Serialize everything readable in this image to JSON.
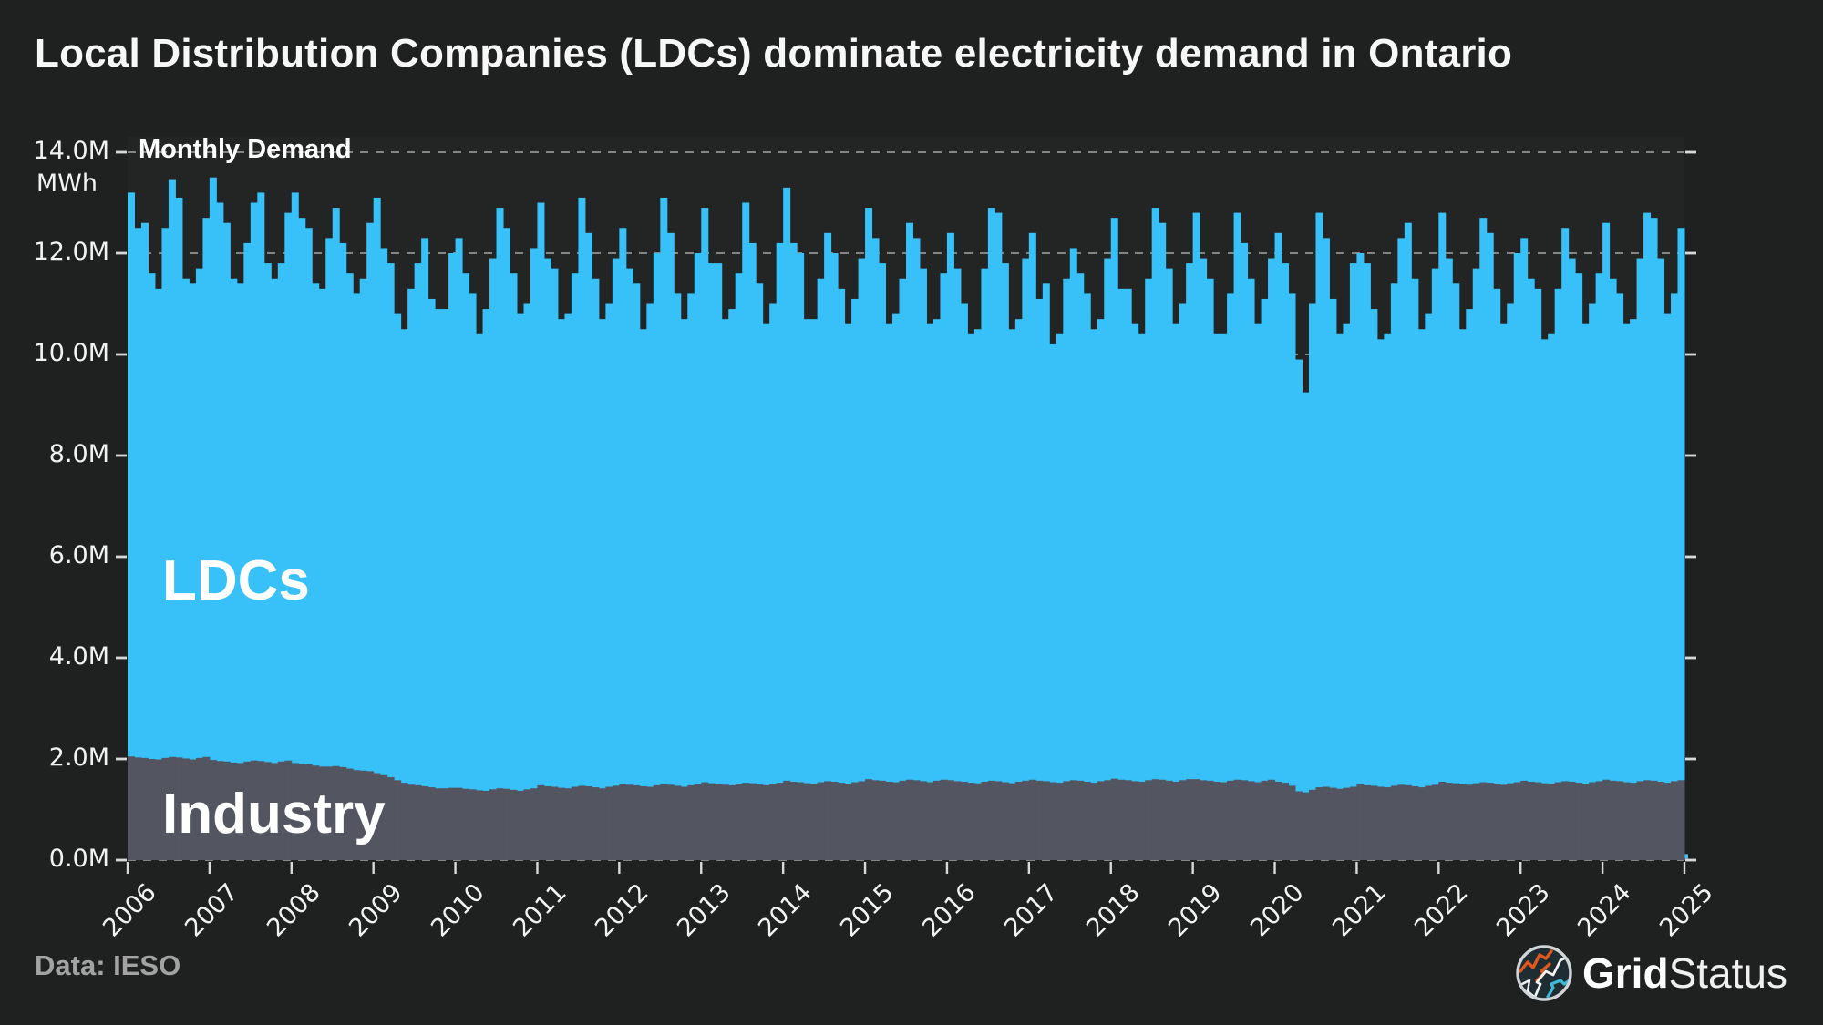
{
  "title": "Local Distribution Companies (LDCs) dominate electricity demand in Ontario",
  "footer": {
    "source": "Data: IESO",
    "brand_bold": "Grid",
    "brand_light": "Status"
  },
  "colors": {
    "background": "#1f2120",
    "plot_background": "#232525",
    "ldcs": "#38c0f8",
    "industry": "#535561",
    "gridline": "#9e9e9e",
    "tick": "#d9d9d9",
    "text": "#f2f2f2"
  },
  "chart_data": {
    "type": "bar",
    "stacked": true,
    "title": "Monthly Demand",
    "ylabel": "MWh",
    "unit": "million MWh per month",
    "x_start": "2006-01",
    "x_end": "2025-01",
    "x_end_note": "final bar is a small partial month",
    "x_tick_rotation": 45,
    "grid": "dashed-horizontal",
    "ylim": [
      0,
      14
    ],
    "yticks": [
      "0.0M",
      "2.0M",
      "4.0M",
      "6.0M",
      "8.0M",
      "10.0M",
      "12.0M",
      "14.0M"
    ],
    "xticks": [
      "2006",
      "2007",
      "2008",
      "2009",
      "2010",
      "2011",
      "2012",
      "2013",
      "2014",
      "2015",
      "2016",
      "2017",
      "2018",
      "2019",
      "2020",
      "2021",
      "2022",
      "2023",
      "2024",
      "2025"
    ],
    "series": [
      {
        "name": "Industry",
        "color": "#535561",
        "values": [
          2.05,
          2.03,
          2.02,
          2.0,
          1.99,
          2.02,
          2.04,
          2.03,
          2.01,
          1.99,
          2.02,
          2.04,
          1.98,
          1.96,
          1.95,
          1.93,
          1.92,
          1.95,
          1.97,
          1.96,
          1.94,
          1.92,
          1.95,
          1.97,
          1.92,
          1.91,
          1.9,
          1.87,
          1.85,
          1.85,
          1.86,
          1.84,
          1.81,
          1.78,
          1.77,
          1.76,
          1.72,
          1.68,
          1.64,
          1.58,
          1.53,
          1.49,
          1.48,
          1.46,
          1.44,
          1.42,
          1.42,
          1.43,
          1.43,
          1.41,
          1.4,
          1.38,
          1.37,
          1.4,
          1.42,
          1.41,
          1.39,
          1.37,
          1.4,
          1.42,
          1.48,
          1.46,
          1.45,
          1.43,
          1.42,
          1.45,
          1.47,
          1.46,
          1.44,
          1.42,
          1.45,
          1.47,
          1.51,
          1.49,
          1.48,
          1.46,
          1.45,
          1.48,
          1.5,
          1.49,
          1.47,
          1.45,
          1.48,
          1.5,
          1.54,
          1.52,
          1.51,
          1.49,
          1.48,
          1.51,
          1.53,
          1.52,
          1.5,
          1.48,
          1.51,
          1.53,
          1.57,
          1.55,
          1.54,
          1.52,
          1.51,
          1.54,
          1.56,
          1.55,
          1.53,
          1.51,
          1.54,
          1.56,
          1.6,
          1.58,
          1.57,
          1.55,
          1.54,
          1.57,
          1.59,
          1.58,
          1.56,
          1.54,
          1.57,
          1.59,
          1.58,
          1.56,
          1.55,
          1.53,
          1.52,
          1.55,
          1.57,
          1.56,
          1.54,
          1.52,
          1.55,
          1.57,
          1.59,
          1.57,
          1.56,
          1.54,
          1.53,
          1.56,
          1.58,
          1.57,
          1.55,
          1.53,
          1.56,
          1.58,
          1.61,
          1.59,
          1.58,
          1.56,
          1.55,
          1.58,
          1.6,
          1.59,
          1.57,
          1.55,
          1.58,
          1.6,
          1.6,
          1.58,
          1.57,
          1.55,
          1.54,
          1.57,
          1.59,
          1.58,
          1.56,
          1.54,
          1.57,
          1.59,
          1.55,
          1.53,
          1.47,
          1.36,
          1.34,
          1.39,
          1.44,
          1.45,
          1.43,
          1.41,
          1.43,
          1.45,
          1.5,
          1.48,
          1.47,
          1.45,
          1.44,
          1.47,
          1.49,
          1.48,
          1.46,
          1.44,
          1.47,
          1.49,
          1.55,
          1.53,
          1.52,
          1.5,
          1.49,
          1.52,
          1.54,
          1.53,
          1.51,
          1.49,
          1.52,
          1.54,
          1.57,
          1.55,
          1.54,
          1.52,
          1.51,
          1.54,
          1.56,
          1.55,
          1.53,
          1.51,
          1.54,
          1.56,
          1.59,
          1.57,
          1.56,
          1.54,
          1.53,
          1.56,
          1.58,
          1.57,
          1.55,
          1.53,
          1.56,
          1.58,
          0.03
        ]
      },
      {
        "name": "LDCs",
        "color": "#38c0f8",
        "values": [
          11.15,
          10.47,
          10.58,
          9.6,
          9.31,
          10.48,
          11.41,
          11.07,
          9.49,
          9.41,
          9.68,
          10.66,
          11.52,
          11.04,
          10.65,
          9.57,
          9.48,
          10.25,
          11.03,
          11.24,
          9.86,
          9.58,
          9.85,
          10.83,
          11.28,
          10.79,
          10.6,
          9.53,
          9.45,
          10.45,
          11.04,
          10.36,
          9.79,
          9.42,
          9.73,
          10.84,
          11.38,
          10.42,
          10.16,
          9.22,
          8.97,
          9.81,
          10.32,
          10.84,
          9.66,
          9.48,
          9.48,
          10.57,
          10.87,
          10.19,
          9.8,
          9.02,
          9.53,
          10.5,
          11.48,
          11.09,
          10.21,
          9.43,
          9.6,
          10.68,
          11.52,
          10.44,
          10.25,
          9.27,
          9.38,
          10.15,
          11.63,
          10.94,
          10.06,
          9.28,
          9.55,
          10.43,
          10.99,
          10.21,
          9.92,
          9.04,
          9.55,
          10.52,
          11.6,
          10.91,
          9.73,
          9.25,
          9.72,
          10.5,
          11.36,
          10.28,
          10.29,
          9.21,
          9.42,
          10.09,
          11.47,
          10.68,
          9.9,
          9.12,
          9.49,
          10.67,
          11.73,
          10.65,
          10.46,
          9.18,
          9.19,
          9.96,
          10.84,
          10.45,
          9.77,
          9.09,
          9.56,
          10.34,
          11.3,
          10.72,
          10.23,
          9.05,
          9.26,
          9.93,
          11.01,
          10.72,
          10.14,
          9.06,
          9.13,
          10.01,
          10.82,
          10.14,
          9.45,
          8.87,
          8.98,
          10.15,
          11.33,
          11.24,
          10.26,
          8.98,
          9.15,
          10.33,
          10.81,
          9.53,
          9.84,
          8.66,
          8.87,
          9.94,
          10.52,
          10.03,
          9.65,
          8.97,
          9.14,
          10.32,
          11.09,
          9.71,
          9.72,
          9.04,
          8.85,
          9.92,
          11.3,
          11.01,
          10.13,
          9.05,
          9.42,
          10.2,
          11.2,
          10.32,
          9.93,
          8.85,
          8.86,
          9.63,
          11.21,
          10.62,
          9.94,
          9.06,
          9.53,
          10.31,
          10.85,
          10.27,
          9.73,
          8.54,
          7.91,
          9.61,
          11.36,
          10.85,
          9.67,
          8.99,
          9.17,
          10.35,
          10.5,
          10.32,
          9.43,
          8.85,
          8.96,
          9.93,
          10.81,
          11.12,
          10.04,
          9.06,
          9.33,
          10.21,
          11.25,
          10.37,
          9.88,
          9.0,
          9.41,
          10.18,
          11.16,
          10.87,
          9.79,
          9.11,
          9.48,
          10.46,
          10.73,
          9.95,
          9.76,
          8.78,
          8.89,
          9.76,
          10.94,
          10.35,
          10.07,
          9.09,
          9.46,
          10.04,
          11.01,
          9.93,
          9.64,
          9.06,
          9.17,
          10.34,
          11.22,
          11.13,
          10.35,
          9.27,
          9.64,
          10.92,
          0.09
        ]
      }
    ],
    "annotations": [
      {
        "text": "Monthly Demand",
        "position": "top-left inside plot"
      },
      {
        "text": "LDCs",
        "position": "inside blue area, left"
      },
      {
        "text": "Industry",
        "position": "inside gray band, left"
      }
    ]
  }
}
